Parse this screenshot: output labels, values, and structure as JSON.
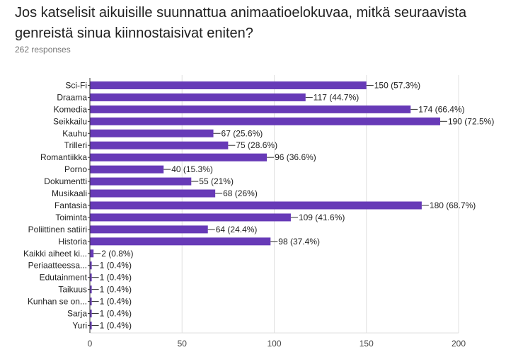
{
  "question": {
    "title": "Jos katselisit aikuisille suunnattua animaatioelokuvaa, mitkä seuraavista genreistä sinua kiinnostaisivat eniten?",
    "responses": "262 responses"
  },
  "colors": {
    "bar": "#673ab7",
    "grid": "#e0e0e0",
    "axis": "#333333",
    "label_text": "#222222",
    "tick_text": "#444444"
  },
  "chart_data": {
    "type": "bar",
    "orientation": "horizontal",
    "xlim": [
      0,
      200
    ],
    "xticks": [
      0,
      50,
      100,
      150,
      200
    ],
    "grid": true,
    "categories": [
      "Sci-Fi",
      "Draama",
      "Komedia",
      "Seikkailu",
      "Kauhu",
      "Trilleri",
      "Romantiikka",
      "Porno",
      "Dokumentti",
      "Musikaali",
      "Fantasia",
      "Toiminta",
      "Poliittinen satiiri",
      "Historia",
      "Kaikki aiheet ki...",
      "Periaatteessa...",
      "Edutainment",
      "Taikuus",
      "Kunhan se on...",
      "Sarja",
      "Yuri"
    ],
    "values": [
      150,
      117,
      174,
      190,
      67,
      75,
      96,
      40,
      55,
      68,
      180,
      109,
      64,
      98,
      2,
      1,
      1,
      1,
      1,
      1,
      1
    ],
    "data_labels": [
      "150 (57.3%)",
      "117 (44.7%)",
      "174 (66.4%)",
      "190 (72.5%)",
      "67 (25.6%)",
      "75 (28.6%)",
      "96 (36.6%)",
      "40 (15.3%)",
      "55 (21%)",
      "68 (26%)",
      "180 (68.7%)",
      "109 (41.6%)",
      "64 (24.4%)",
      "98 (37.4%)",
      "2 (0.8%)",
      "1 (0.4%)",
      "1 (0.4%)",
      "1 (0.4%)",
      "1 (0.4%)",
      "1 (0.4%)",
      "1 (0.4%)"
    ]
  }
}
